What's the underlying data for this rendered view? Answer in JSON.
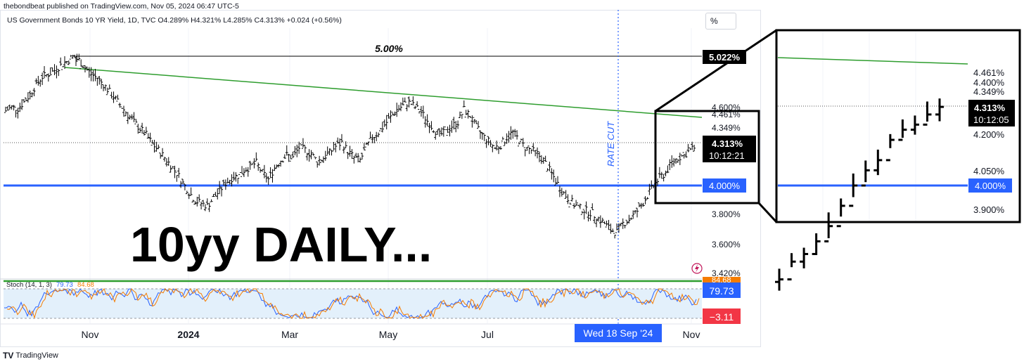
{
  "publisher_line": "thebondbeat published on TradingView.com, Nov 05, 2024 06:47 UTC-5",
  "symbol_line": "US Government Bonds 10 YR Yield, 1D, TVC  O4.289%  H4.321%  L4.285%  C4.313%  +0.024 (+0.56%)",
  "scale_button": "%",
  "footer_logo": "TV",
  "footer_text": "TradingView",
  "big_title": "10yy DAILY...",
  "rate_cut_label": "RATE CUT",
  "crosshair_date": "Wed 18 Sep '24",
  "colors": {
    "support_line": "#2962ff",
    "trend_line": "#2e9d2e",
    "candles": "#000000",
    "stoch_k": "#2962ff",
    "stoch_d": "#f57c00",
    "stoch_band_fill": "#e3f0fb",
    "badge_blue": "#2962ff",
    "badge_red": "#f23645",
    "badge_orange": "#f57c00"
  },
  "stoch": {
    "legend": "Stoch (14, 1, 3)",
    "k_value": "79.73",
    "d_value": "84.68",
    "badge_upper": "84.68",
    "badge_k": "79.73",
    "badge_low": "−3.11"
  },
  "main_price_labels": {
    "high_box": "5.022%",
    "level_note": "5.00%",
    "current_box": "4.313%",
    "current_countdown": "10:12:21",
    "support_box": "4.000%",
    "tick_4461": "4.461%",
    "tick_4349": "4.349%",
    "tick_4600": "4.600%",
    "tick_3800": "3.800%",
    "tick_3600": "3.600%",
    "tick_3420": "3.420%"
  },
  "zoom_labels": {
    "tick_4461": "4.461%",
    "tick_4400": "4.400%",
    "tick_4349": "4.349%",
    "current_box": "4.313%",
    "current_countdown": "10:12:05",
    "tick_4200": "4.200%",
    "tick_4050": "4.050%",
    "support_box": "4.000%",
    "tick_3900": "3.900%"
  },
  "chart_data": {
    "type": "candlestick",
    "title": "US Government Bonds 10 YR Yield, 1D, TVC",
    "ylabel": "%",
    "ylim": [
      3.42,
      5.1
    ],
    "x_tick_labels": [
      "Nov",
      "2024",
      "Mar",
      "May",
      "Jul",
      "Nov"
    ],
    "horizontal_levels": [
      {
        "label": "5.022%",
        "value": 5.022
      },
      {
        "label": "4.000%",
        "value": 4.0
      }
    ],
    "trendline": {
      "start": [
        "Oct 2023",
        4.92
      ],
      "end": [
        "Nov 2024",
        4.45
      ]
    },
    "vertical_marker": {
      "date": "Wed 18 Sep '24",
      "label": "RATE CUT"
    },
    "last": {
      "open": 4.289,
      "high": 4.321,
      "low": 4.285,
      "close": 4.313,
      "change": 0.024,
      "change_pct": 0.56
    },
    "series": [
      {
        "name": "US Government Bonds 10 YR Yield",
        "closes": [
          4.59,
          4.62,
          4.61,
          4.66,
          4.72,
          4.8,
          4.86,
          4.88,
          4.91,
          4.95,
          4.98,
          5.02,
          4.99,
          4.93,
          4.88,
          4.85,
          4.8,
          4.74,
          4.68,
          4.62,
          4.56,
          4.5,
          4.45,
          4.4,
          4.33,
          4.28,
          4.22,
          4.16,
          4.1,
          4.02,
          3.95,
          3.88,
          3.86,
          3.84,
          3.9,
          3.96,
          4.02,
          4.06,
          4.08,
          4.12,
          4.15,
          4.18,
          4.1,
          4.05,
          4.14,
          4.2,
          4.24,
          4.22,
          4.3,
          4.28,
          4.25,
          4.19,
          4.22,
          4.26,
          4.31,
          4.34,
          4.27,
          4.22,
          4.2,
          4.3,
          4.38,
          4.42,
          4.48,
          4.54,
          4.6,
          4.63,
          4.66,
          4.62,
          4.58,
          4.51,
          4.45,
          4.4,
          4.42,
          4.47,
          4.5,
          4.6,
          4.55,
          4.46,
          4.4,
          4.35,
          4.3,
          4.32,
          4.38,
          4.42,
          4.36,
          4.3,
          4.28,
          4.25,
          4.2,
          4.12,
          4.04,
          3.96,
          3.9,
          3.85,
          3.82,
          3.8,
          3.78,
          3.74,
          3.7,
          3.65,
          3.63,
          3.7,
          3.73,
          3.78,
          3.84,
          3.92,
          4.0,
          4.06,
          4.1,
          4.18,
          4.22,
          4.24,
          4.28,
          4.31
        ]
      },
      {
        "name": "Stoch %K (14,1,3)",
        "last": 79.73
      },
      {
        "name": "Stoch %D",
        "last": 84.68
      }
    ]
  }
}
